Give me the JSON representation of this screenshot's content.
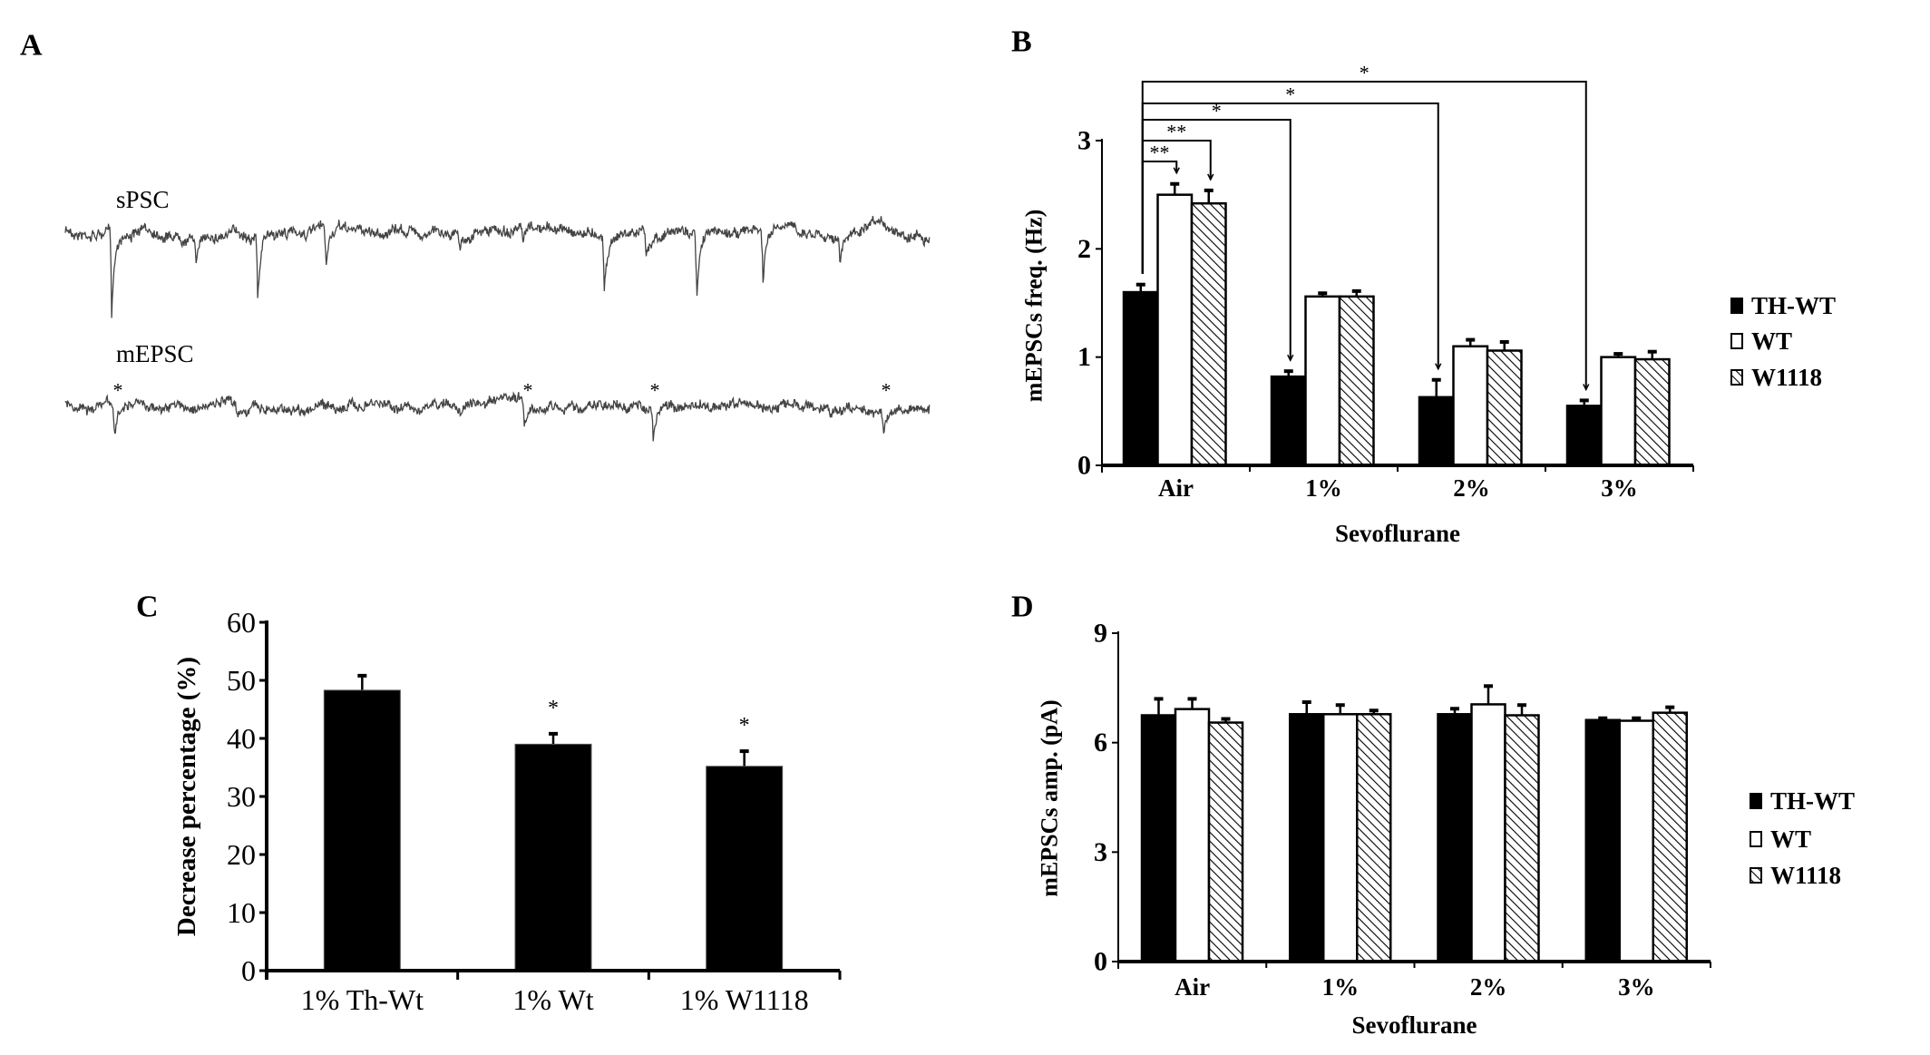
{
  "chart_data": [
    {
      "panel": "A",
      "type": "line",
      "traces": [
        {
          "label": "sPSC"
        },
        {
          "label": "mEPSC",
          "event_marker": "*"
        }
      ]
    },
    {
      "panel": "B",
      "type": "bar",
      "categories": [
        "Air",
        "1%",
        "2%",
        "3%"
      ],
      "xlabel": "Sevoflurane",
      "ylabel": "mEPSCs freq. (Hz)",
      "ylim": [
        0,
        3
      ],
      "yticks": [
        "0",
        "1",
        "2",
        "3"
      ],
      "legend": "right",
      "series": [
        {
          "name": "TH-WT",
          "fill": "solid",
          "values": [
            1.6,
            0.82,
            0.63,
            0.55
          ],
          "errors": [
            0.07,
            0.05,
            0.16,
            0.05
          ]
        },
        {
          "name": "WT",
          "fill": "open",
          "values": [
            2.5,
            1.56,
            1.1,
            1.0
          ],
          "errors": [
            0.1,
            0.03,
            0.06,
            0.03
          ]
        },
        {
          "name": "W1118",
          "fill": "hatched",
          "values": [
            2.42,
            1.56,
            1.06,
            0.98
          ],
          "errors": [
            0.12,
            0.05,
            0.08,
            0.07
          ]
        }
      ],
      "annotations": [
        {
          "from": [
            "Air",
            "TH-WT"
          ],
          "to": [
            "3%",
            "TH-WT"
          ],
          "label": "*"
        },
        {
          "from": [
            "Air",
            "TH-WT"
          ],
          "to": [
            "2%",
            "TH-WT"
          ],
          "label": "*"
        },
        {
          "from": [
            "Air",
            "TH-WT"
          ],
          "to": [
            "1%",
            "TH-WT"
          ],
          "label": "*"
        },
        {
          "from": [
            "Air",
            "TH-WT"
          ],
          "to": [
            "Air",
            "W1118"
          ],
          "label": "**"
        },
        {
          "from": [
            "Air",
            "TH-WT"
          ],
          "to": [
            "Air",
            "WT"
          ],
          "label": "**"
        }
      ]
    },
    {
      "panel": "C",
      "type": "bar",
      "categories": [
        "1% Th-Wt",
        "1% Wt",
        "1% W1118"
      ],
      "xlabel": "",
      "ylabel": "Decrease percentage (%)",
      "ylim": [
        0,
        60
      ],
      "yticks": [
        "0",
        "10",
        "20",
        "30",
        "40",
        "50",
        "60"
      ],
      "values": [
        48.3,
        39.0,
        35.2
      ],
      "errors": [
        2.5,
        1.8,
        2.6
      ],
      "significance": [
        "",
        "*",
        "*"
      ]
    },
    {
      "panel": "D",
      "type": "bar",
      "categories": [
        "Air",
        "1%",
        "2%",
        "3%"
      ],
      "xlabel": "Sevoflurane",
      "ylabel": "mEPSCs amp. (pA)",
      "ylim": [
        0,
        9
      ],
      "yticks": [
        "0",
        "3",
        "6",
        "9"
      ],
      "legend": "right",
      "series": [
        {
          "name": "TH-WT",
          "fill": "solid",
          "values": [
            6.75,
            6.78,
            6.78,
            6.62
          ],
          "errors": [
            0.45,
            0.33,
            0.15,
            0.05
          ]
        },
        {
          "name": "WT",
          "fill": "open",
          "values": [
            6.92,
            6.78,
            7.05,
            6.6
          ],
          "errors": [
            0.28,
            0.25,
            0.5,
            0.07
          ]
        },
        {
          "name": "W1118",
          "fill": "hatched",
          "values": [
            6.55,
            6.78,
            6.75,
            6.82
          ],
          "errors": [
            0.1,
            0.1,
            0.28,
            0.15
          ]
        }
      ]
    }
  ]
}
